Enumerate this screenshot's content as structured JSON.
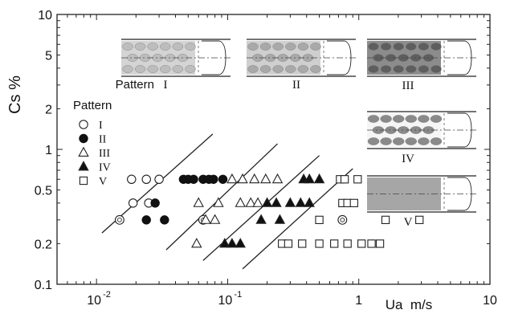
{
  "chart_data": {
    "type": "scatter",
    "xscale": "log",
    "yscale": "log",
    "xlim": [
      0.005,
      10
    ],
    "ylim": [
      0.1,
      10
    ],
    "xlabel": "Ua  m/s",
    "ylabel": "Cs %",
    "grid": false,
    "x_ticks": [
      {
        "value": 0.01,
        "base": "10",
        "exp": "-2"
      },
      {
        "value": 0.1,
        "base": "10",
        "exp": "-1"
      },
      {
        "value": 1,
        "label": "1"
      },
      {
        "value": 10,
        "label": "10"
      }
    ],
    "y_ticks": [
      {
        "value": 0.1,
        "label": "0.1"
      },
      {
        "value": 0.2,
        "label": "0.2"
      },
      {
        "value": 0.5,
        "label": "0.5"
      },
      {
        "value": 1,
        "label": "1"
      },
      {
        "value": 2,
        "label": "2"
      },
      {
        "value": 5,
        "label": "5"
      },
      {
        "value": 10,
        "label": "10"
      }
    ],
    "legend": {
      "title": "Pattern",
      "placement": "upper-left",
      "entries": [
        {
          "label": "I",
          "marker": "circle-open"
        },
        {
          "label": "II",
          "marker": "circle-filled"
        },
        {
          "label": "III",
          "marker": "triangle-open"
        },
        {
          "label": "IV",
          "marker": "triangle-filled"
        },
        {
          "label": "V",
          "marker": "square-open"
        }
      ]
    },
    "series": [
      {
        "name": "I",
        "marker": "circle-open",
        "points": [
          [
            0.0185,
            0.6
          ],
          [
            0.024,
            0.6
          ],
          [
            0.03,
            0.6
          ],
          [
            0.019,
            0.4
          ],
          [
            0.025,
            0.4
          ],
          [
            0.015,
            0.3
          ],
          [
            0.065,
            0.3
          ],
          [
            0.75,
            0.3
          ]
        ]
      },
      {
        "name": "II",
        "marker": "circle-filled",
        "points": [
          [
            0.046,
            0.6
          ],
          [
            0.05,
            0.6
          ],
          [
            0.055,
            0.6
          ],
          [
            0.065,
            0.6
          ],
          [
            0.072,
            0.6
          ],
          [
            0.078,
            0.6
          ],
          [
            0.092,
            0.6
          ],
          [
            0.028,
            0.4
          ],
          [
            0.024,
            0.3
          ],
          [
            0.033,
            0.3
          ]
        ]
      },
      {
        "name": "III",
        "marker": "triangle-open",
        "points": [
          [
            0.108,
            0.6
          ],
          [
            0.13,
            0.6
          ],
          [
            0.16,
            0.6
          ],
          [
            0.195,
            0.6
          ],
          [
            0.24,
            0.6
          ],
          [
            0.06,
            0.4
          ],
          [
            0.085,
            0.4
          ],
          [
            0.125,
            0.4
          ],
          [
            0.15,
            0.4
          ],
          [
            0.17,
            0.4
          ],
          [
            0.068,
            0.3
          ],
          [
            0.08,
            0.3
          ],
          [
            0.058,
            0.2
          ]
        ]
      },
      {
        "name": "IV",
        "marker": "triangle-filled",
        "points": [
          [
            0.38,
            0.6
          ],
          [
            0.42,
            0.6
          ],
          [
            0.5,
            0.6
          ],
          [
            0.2,
            0.4
          ],
          [
            0.235,
            0.4
          ],
          [
            0.3,
            0.4
          ],
          [
            0.36,
            0.4
          ],
          [
            0.42,
            0.4
          ],
          [
            0.18,
            0.3
          ],
          [
            0.25,
            0.3
          ],
          [
            0.095,
            0.2
          ],
          [
            0.108,
            0.2
          ],
          [
            0.125,
            0.2
          ]
        ]
      },
      {
        "name": "V",
        "marker": "square-open",
        "points": [
          [
            0.72,
            0.6
          ],
          [
            0.78,
            0.6
          ],
          [
            0.98,
            0.6
          ],
          [
            0.75,
            0.4
          ],
          [
            0.82,
            0.4
          ],
          [
            0.92,
            0.4
          ],
          [
            0.5,
            0.3
          ],
          [
            1.6,
            0.3
          ],
          [
            2.9,
            0.3
          ],
          [
            0.26,
            0.2
          ],
          [
            0.29,
            0.2
          ],
          [
            0.37,
            0.2
          ],
          [
            0.5,
            0.2
          ],
          [
            0.65,
            0.2
          ],
          [
            0.82,
            0.2
          ],
          [
            1.05,
            0.2
          ],
          [
            1.25,
            0.2
          ],
          [
            1.45,
            0.2
          ]
        ]
      }
    ],
    "boundary_lines": [
      {
        "from": [
          0.011,
          0.24
        ],
        "to": [
          0.077,
          1.3
        ]
      },
      {
        "from": [
          0.034,
          0.18
        ],
        "to": [
          0.24,
          1.1
        ]
      },
      {
        "from": [
          0.065,
          0.15
        ],
        "to": [
          0.5,
          0.9
        ]
      },
      {
        "from": [
          0.13,
          0.13
        ],
        "to": [
          0.9,
          0.72
        ]
      }
    ],
    "annotations": [
      {
        "label": "Pattern",
        "numeral": "I",
        "fill": "#d4d4d4",
        "dark": "#bdbdbd",
        "kind": "cells"
      },
      {
        "label": "",
        "numeral": "II",
        "fill": "#cfcfcf",
        "dark": "#a9a9a9",
        "kind": "cells"
      },
      {
        "label": "",
        "numeral": "III",
        "fill": "#8c8c8c",
        "dark": "#5e5e5e",
        "kind": "cells"
      },
      {
        "label": "",
        "numeral": "IV",
        "fill": "#f5f5f5",
        "dark": "#8a8a8a",
        "kind": "patches"
      },
      {
        "label": "",
        "numeral": "V",
        "fill": "#a6a6a6",
        "dark": "#a6a6a6",
        "kind": "solid"
      }
    ]
  }
}
